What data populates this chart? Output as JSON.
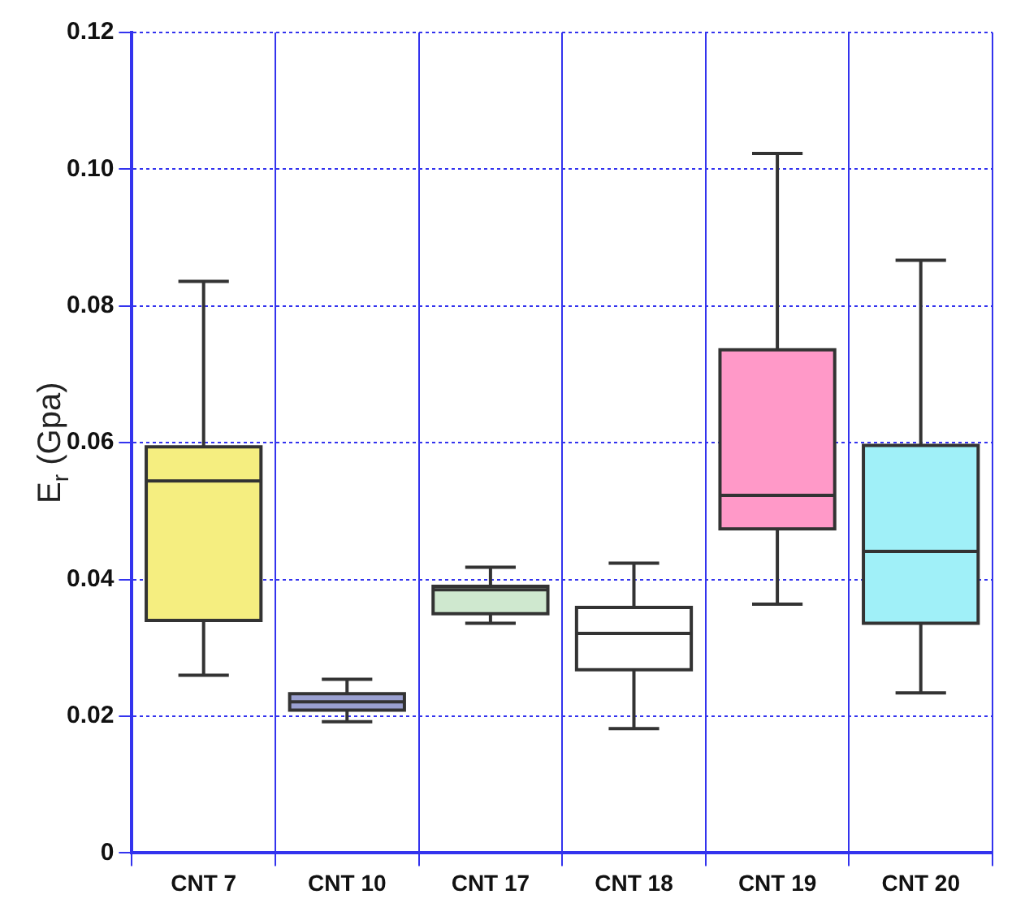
{
  "chart_data": {
    "type": "box",
    "ylabel": "E$_{r}$ (Gpa)",
    "categories": [
      "CNT 7",
      "CNT 10",
      "CNT 17",
      "CNT 18",
      "CNT 19",
      "CNT 20"
    ],
    "boxes": [
      {
        "low": 0.026,
        "q1": 0.034,
        "median": 0.0544,
        "q3": 0.0594,
        "high": 0.0836
      },
      {
        "low": 0.0192,
        "q1": 0.0209,
        "median": 0.0221,
        "q3": 0.0233,
        "high": 0.0254
      },
      {
        "low": 0.0336,
        "q1": 0.035,
        "median": 0.0385,
        "q3": 0.039,
        "high": 0.0418
      },
      {
        "low": 0.0182,
        "q1": 0.0268,
        "median": 0.0321,
        "q3": 0.0359,
        "high": 0.0424
      },
      {
        "low": 0.0364,
        "q1": 0.0474,
        "median": 0.0523,
        "q3": 0.0736,
        "high": 0.1023
      },
      {
        "low": 0.0234,
        "q1": 0.0336,
        "median": 0.0441,
        "q3": 0.0596,
        "high": 0.0867
      }
    ],
    "colors": [
      "#f5ee80",
      "#9aa0d0",
      "#cfe8cf",
      "#ffffff",
      "#ff99c8",
      "#a0f0f8"
    ],
    "ylim": [
      0,
      0.12
    ],
    "yticks": [
      0,
      0.02,
      0.04,
      0.06,
      0.08,
      {
        "value": 0.1,
        "label": "0.10"
      },
      0.12
    ],
    "grid": true
  }
}
